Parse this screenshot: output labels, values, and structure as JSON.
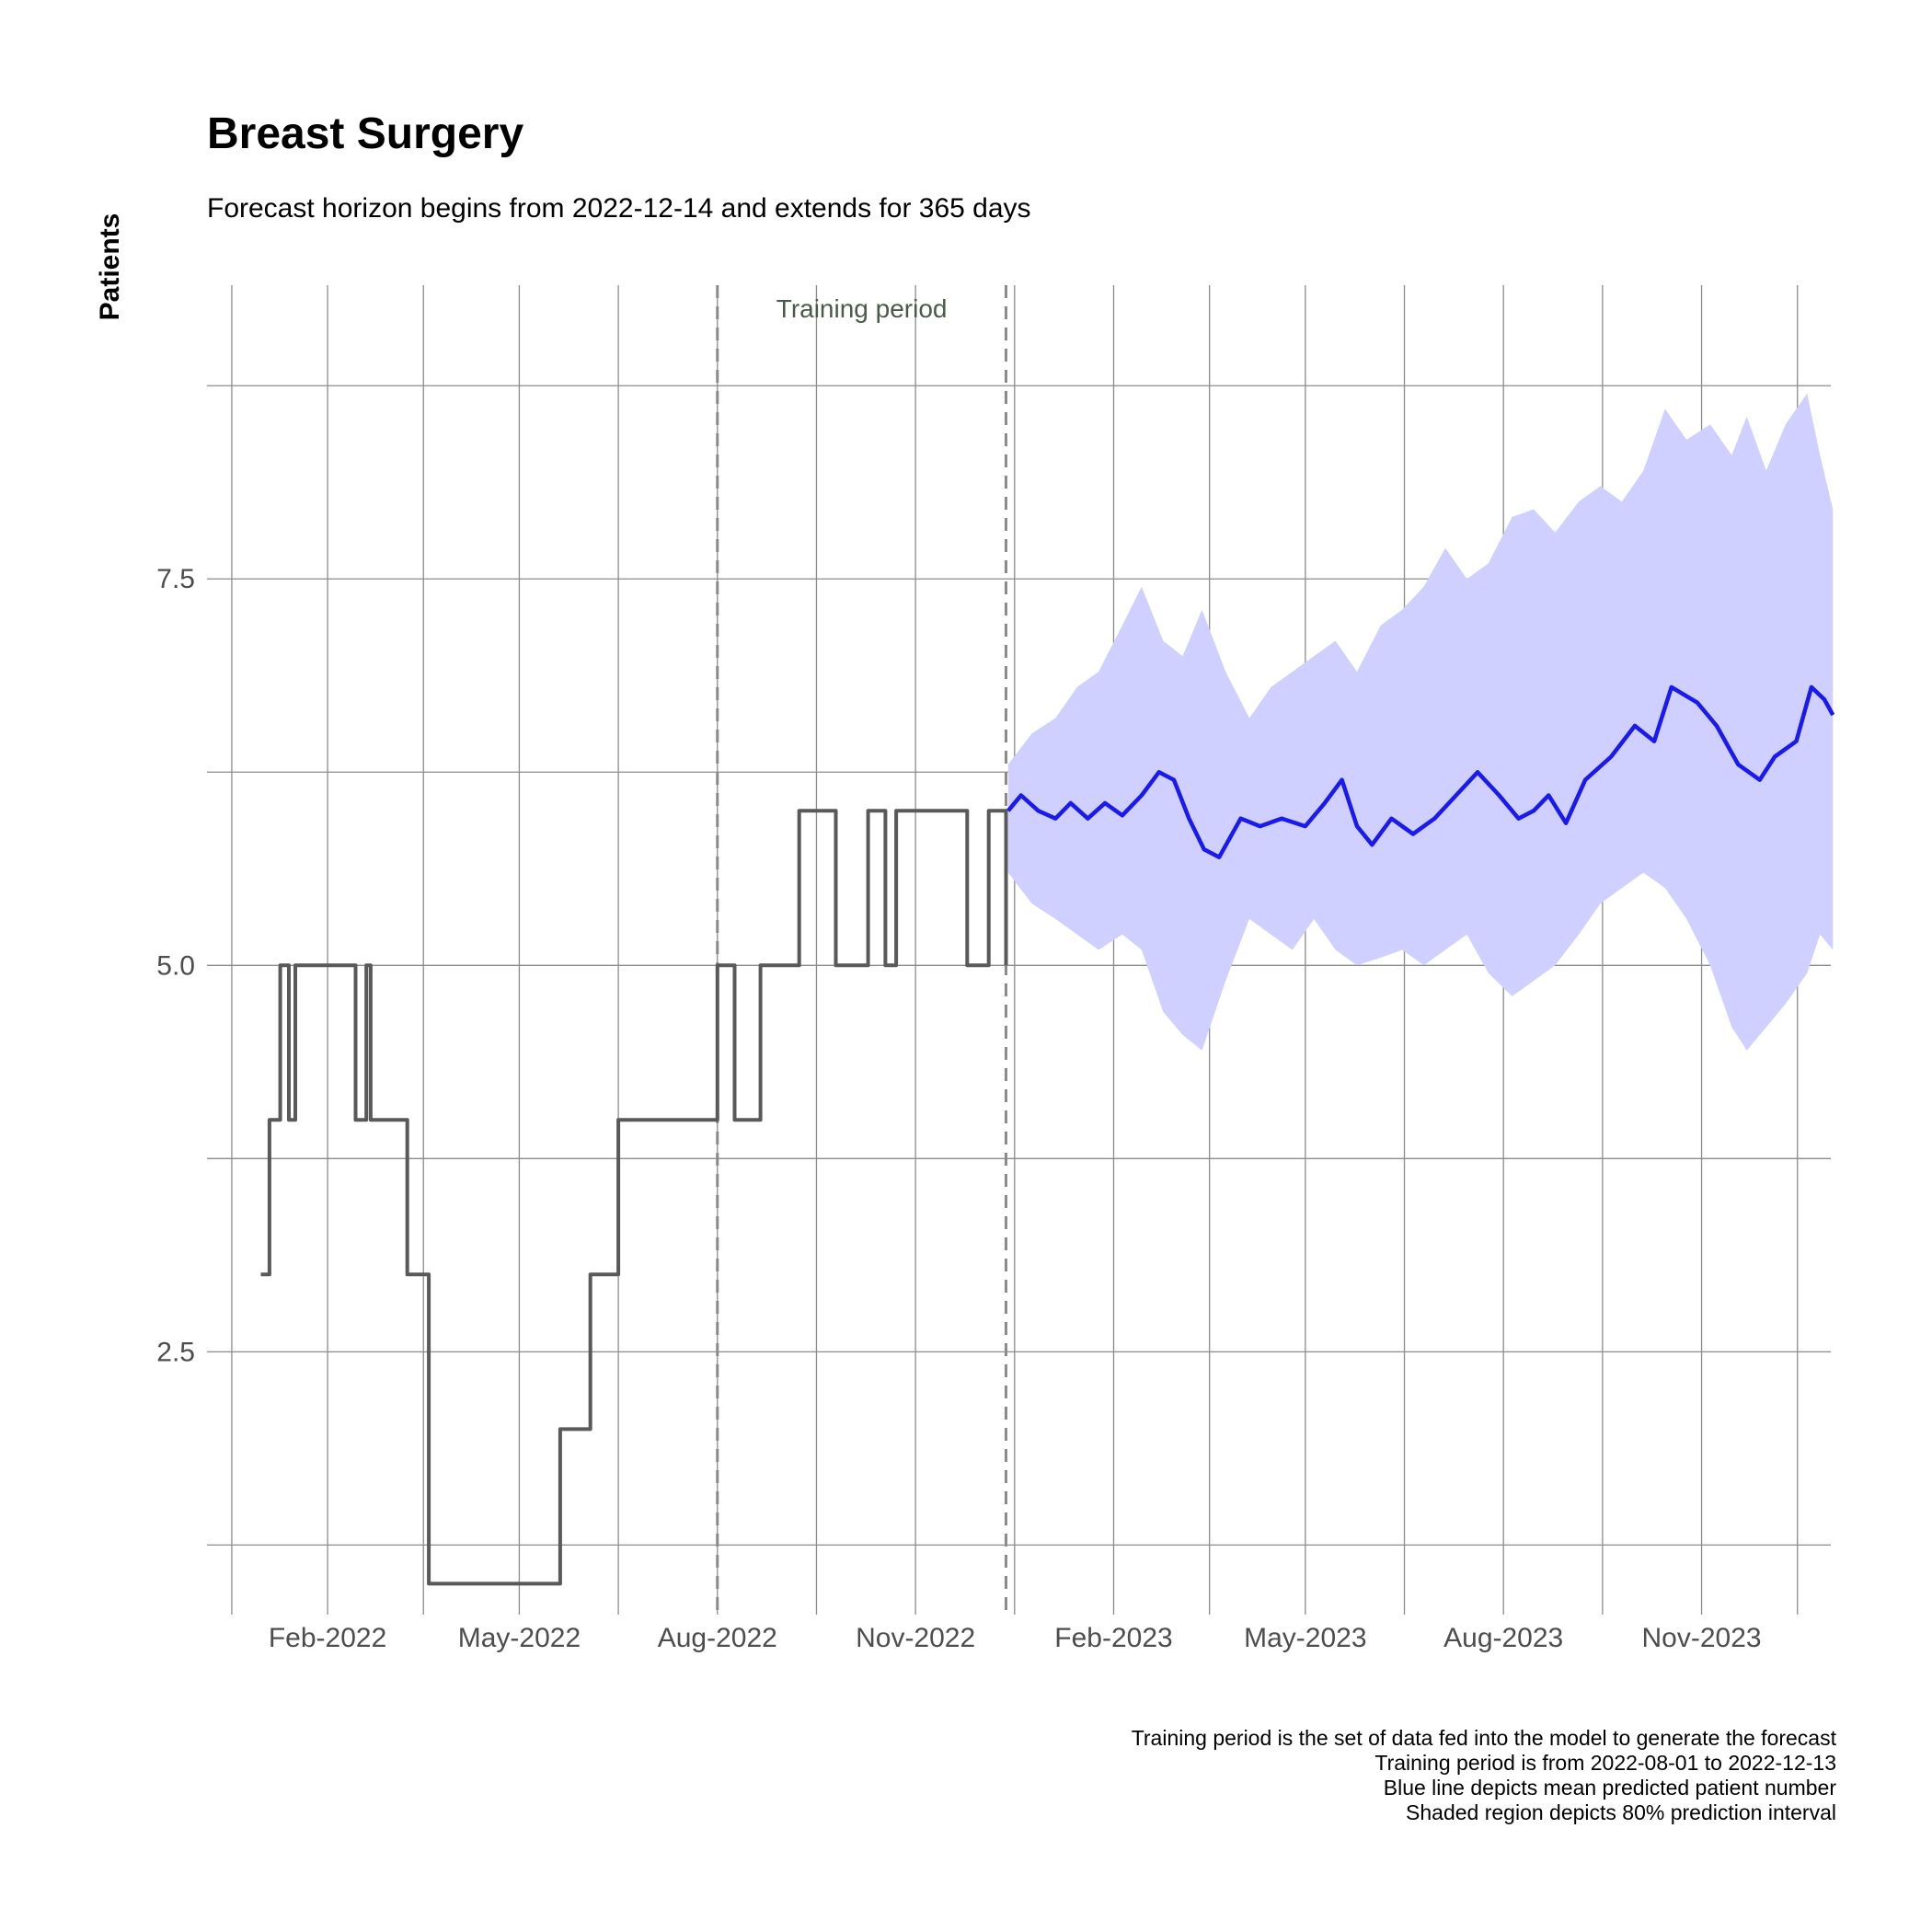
{
  "chart_data": {
    "type": "line",
    "title": "Breast Surgery",
    "subtitle": "Forecast horizon begins from 2022-12-14 and extends for 365 days",
    "xlabel": "",
    "ylabel": "Patients",
    "xlim": [
      "2021-12-07",
      "2023-12-31"
    ],
    "ylim": [
      0.8,
      9.4
    ],
    "y_ticks": [
      2.5,
      5.0,
      7.5
    ],
    "y_tick_labels": [
      "2.5",
      "5.0",
      "7.5"
    ],
    "x_ticks": [
      "2022-02-01",
      "2022-05-01",
      "2022-08-01",
      "2022-11-01",
      "2023-02-01",
      "2023-05-01",
      "2023-08-01",
      "2023-11-01"
    ],
    "x_tick_labels": [
      "Feb-2022",
      "May-2022",
      "Aug-2022",
      "Nov-2022",
      "Feb-2023",
      "May-2023",
      "Aug-2023",
      "Nov-2023"
    ],
    "grid": true,
    "annotation": {
      "label": "Training period",
      "start": "2022-08-01",
      "end": "2022-12-13"
    },
    "series": [
      {
        "style": "step",
        "color": "#595959",
        "points": [
          [
            "2022-01-01",
            3
          ],
          [
            "2022-01-05",
            4
          ],
          [
            "2022-01-10",
            5
          ],
          [
            "2022-01-14",
            4
          ],
          [
            "2022-01-17",
            5
          ],
          [
            "2022-02-14",
            4
          ],
          [
            "2022-02-19",
            5
          ],
          [
            "2022-02-21",
            4
          ],
          [
            "2022-03-10",
            3
          ],
          [
            "2022-03-20",
            1
          ],
          [
            "2022-05-20",
            2
          ],
          [
            "2022-06-03",
            3
          ],
          [
            "2022-06-16",
            4
          ],
          [
            "2022-08-01",
            5
          ],
          [
            "2022-08-09",
            4
          ],
          [
            "2022-08-21",
            5
          ],
          [
            "2022-09-08",
            6
          ],
          [
            "2022-09-25",
            5
          ],
          [
            "2022-10-10",
            6
          ],
          [
            "2022-10-18",
            5
          ],
          [
            "2022-10-23",
            6
          ],
          [
            "2022-11-25",
            5
          ],
          [
            "2022-12-05",
            6
          ],
          [
            "2022-12-13",
            5
          ]
        ]
      },
      {
        "name": "",
        "style": "line",
        "color": "#1a1aee",
        "points": [
          [
            "2022-12-14",
            6.0
          ],
          [
            "2022-12-20",
            6.1
          ],
          [
            "2022-12-28",
            6.0
          ],
          [
            "2023-01-05",
            5.95
          ],
          [
            "2023-01-12",
            6.05
          ],
          [
            "2023-01-20",
            5.95
          ],
          [
            "2023-01-28",
            6.05
          ],
          [
            "2023-02-05",
            5.97
          ],
          [
            "2023-02-14",
            6.1
          ],
          [
            "2023-02-22",
            6.25
          ],
          [
            "2023-03-01",
            6.2
          ],
          [
            "2023-03-08",
            5.95
          ],
          [
            "2023-03-15",
            5.75
          ],
          [
            "2023-03-22",
            5.7
          ],
          [
            "2023-04-01",
            5.95
          ],
          [
            "2023-04-10",
            5.9
          ],
          [
            "2023-04-20",
            5.95
          ],
          [
            "2023-05-01",
            5.9
          ],
          [
            "2023-05-10",
            6.05
          ],
          [
            "2023-05-18",
            6.2
          ],
          [
            "2023-05-25",
            5.9
          ],
          [
            "2023-06-01",
            5.78
          ],
          [
            "2023-06-10",
            5.95
          ],
          [
            "2023-06-20",
            5.85
          ],
          [
            "2023-06-30",
            5.95
          ],
          [
            "2023-07-10",
            6.1
          ],
          [
            "2023-07-20",
            6.25
          ],
          [
            "2023-07-30",
            6.1
          ],
          [
            "2023-08-08",
            5.95
          ],
          [
            "2023-08-15",
            6.0
          ],
          [
            "2023-08-22",
            6.1
          ],
          [
            "2023-08-30",
            5.92
          ],
          [
            "2023-09-08",
            6.2
          ],
          [
            "2023-09-20",
            6.35
          ],
          [
            "2023-10-01",
            6.55
          ],
          [
            "2023-10-10",
            6.45
          ],
          [
            "2023-10-18",
            6.8
          ],
          [
            "2023-10-30",
            6.7
          ],
          [
            "2023-11-08",
            6.55
          ],
          [
            "2023-11-18",
            6.3
          ],
          [
            "2023-11-28",
            6.2
          ],
          [
            "2023-12-05",
            6.35
          ],
          [
            "2023-12-15",
            6.45
          ],
          [
            "2023-12-22",
            6.8
          ],
          [
            "2023-12-28",
            6.72
          ],
          [
            "2024-01-01",
            6.62
          ]
        ]
      }
    ],
    "interval": {
      "color": "#cfd0ff",
      "level": "80%",
      "points": [
        [
          "2022-12-14",
          5.6,
          6.3
        ],
        [
          "2022-12-25",
          5.4,
          6.5
        ],
        [
          "2023-01-05",
          5.3,
          6.6
        ],
        [
          "2023-01-15",
          5.2,
          6.8
        ],
        [
          "2023-01-25",
          5.1,
          6.9
        ],
        [
          "2023-02-05",
          5.2,
          7.2
        ],
        [
          "2023-02-14",
          5.1,
          7.45
        ],
        [
          "2023-02-24",
          4.7,
          7.1
        ],
        [
          "2023-03-05",
          4.55,
          7.0
        ],
        [
          "2023-03-14",
          4.45,
          7.3
        ],
        [
          "2023-03-25",
          4.9,
          6.9
        ],
        [
          "2023-04-05",
          5.3,
          6.6
        ],
        [
          "2023-04-15",
          5.2,
          6.8
        ],
        [
          "2023-04-25",
          5.1,
          6.9
        ],
        [
          "2023-05-05",
          5.3,
          7.0
        ],
        [
          "2023-05-15",
          5.1,
          7.1
        ],
        [
          "2023-05-25",
          5.0,
          6.9
        ],
        [
          "2023-06-05",
          5.05,
          7.2
        ],
        [
          "2023-06-15",
          5.1,
          7.3
        ],
        [
          "2023-06-25",
          5.0,
          7.45
        ],
        [
          "2023-07-05",
          5.1,
          7.7
        ],
        [
          "2023-07-15",
          5.2,
          7.5
        ],
        [
          "2023-07-25",
          4.95,
          7.6
        ],
        [
          "2023-08-05",
          4.8,
          7.9
        ],
        [
          "2023-08-15",
          4.9,
          7.95
        ],
        [
          "2023-08-25",
          5.0,
          7.8
        ],
        [
          "2023-09-05",
          5.2,
          8.0
        ],
        [
          "2023-09-15",
          5.4,
          8.1
        ],
        [
          "2023-09-25",
          5.5,
          8.0
        ],
        [
          "2023-10-05",
          5.6,
          8.2
        ],
        [
          "2023-10-15",
          5.5,
          8.6
        ],
        [
          "2023-10-25",
          5.3,
          8.4
        ],
        [
          "2023-11-05",
          5.0,
          8.5
        ],
        [
          "2023-11-15",
          4.6,
          8.3
        ],
        [
          "2023-11-22",
          4.45,
          8.55
        ],
        [
          "2023-12-01",
          4.6,
          8.2
        ],
        [
          "2023-12-10",
          4.75,
          8.5
        ],
        [
          "2023-12-20",
          4.95,
          8.7
        ],
        [
          "2023-12-26",
          5.2,
          8.3
        ],
        [
          "2024-01-01",
          5.1,
          7.95
        ]
      ]
    }
  },
  "caption": {
    "lines": [
      "Training period is the set of data fed into the model to generate the forecast",
      "Training period is from 2022-08-01 to 2022-12-13",
      "Blue line depicts mean predicted patient number",
      "Shaded region depicts 80% prediction interval"
    ]
  }
}
